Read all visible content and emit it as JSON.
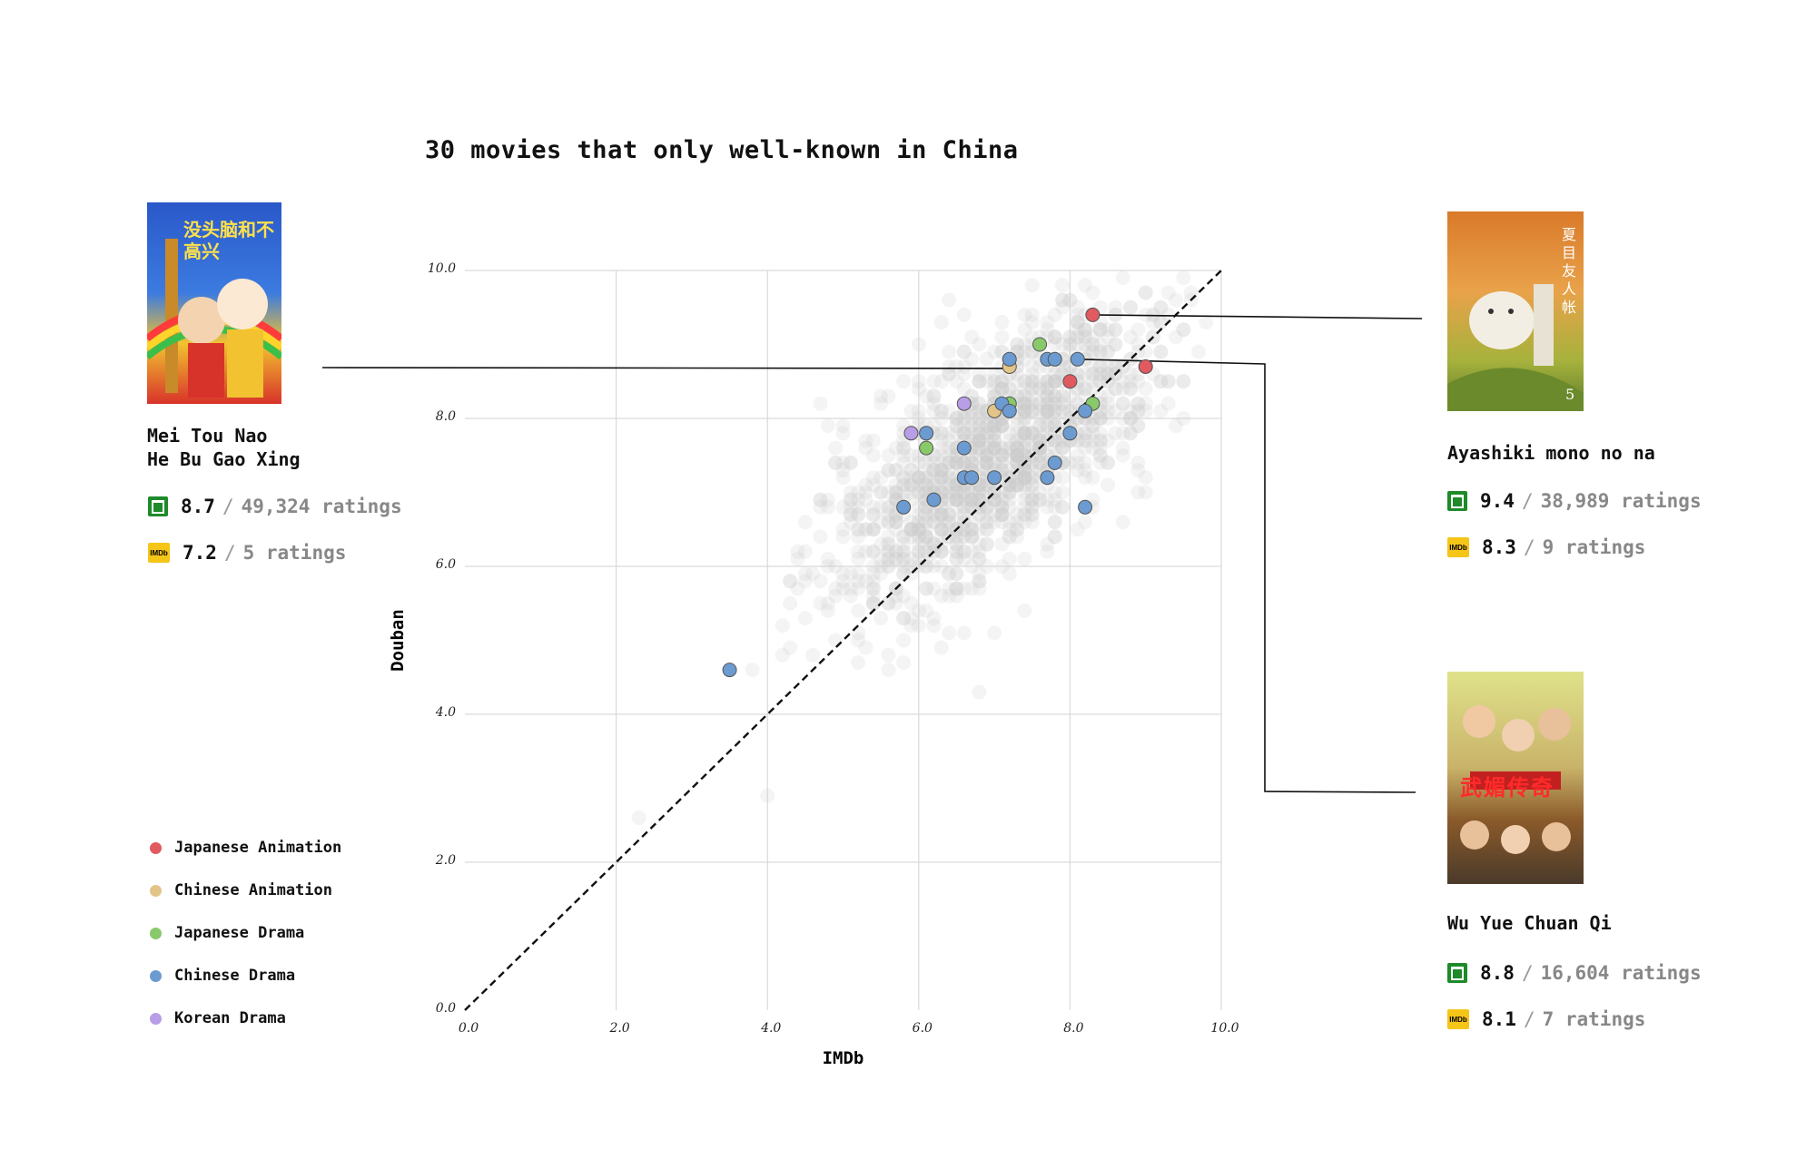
{
  "title": "30 movies that only well-known in China",
  "chart_data": {
    "type": "scatter",
    "title": "30 movies that only well-known in China",
    "xlabel": "IMDb",
    "ylabel": "Douban",
    "xlim": [
      0,
      10
    ],
    "ylim": [
      0,
      10
    ],
    "xticks": [
      "0.0",
      "2.0",
      "4.0",
      "6.0",
      "8.0",
      "10.0"
    ],
    "yticks": [
      "0.0",
      "2.0",
      "4.0",
      "6.0",
      "8.0",
      "10.0"
    ],
    "grid": true,
    "reference_line": "y = x (dashed)",
    "background_series": {
      "color": "#cccccc",
      "note": "all other movies (gray)"
    },
    "series": [
      {
        "name": "Japanese Animation",
        "color": "#e05a60",
        "points": [
          [
            8.3,
            9.4
          ],
          [
            9.0,
            8.7
          ],
          [
            8.0,
            8.5
          ]
        ]
      },
      {
        "name": "Chinese Animation",
        "color": "#e3c488",
        "points": [
          [
            7.2,
            8.7
          ],
          [
            7.0,
            8.1
          ]
        ]
      },
      {
        "name": "Japanese Drama",
        "color": "#88c96a",
        "points": [
          [
            7.6,
            9.0
          ],
          [
            7.2,
            8.2
          ],
          [
            8.3,
            8.2
          ],
          [
            6.1,
            7.6
          ]
        ]
      },
      {
        "name": "Chinese Drama",
        "color": "#6b9bd1",
        "points": [
          [
            7.2,
            8.8
          ],
          [
            7.7,
            8.8
          ],
          [
            7.8,
            8.8
          ],
          [
            8.1,
            8.8
          ],
          [
            7.1,
            8.2
          ],
          [
            7.2,
            8.1
          ],
          [
            8.2,
            8.1
          ],
          [
            8.0,
            7.8
          ],
          [
            6.1,
            7.8
          ],
          [
            6.6,
            7.6
          ],
          [
            7.8,
            7.4
          ],
          [
            6.6,
            7.2
          ],
          [
            6.7,
            7.2
          ],
          [
            7.0,
            7.2
          ],
          [
            7.7,
            7.2
          ],
          [
            6.2,
            6.9
          ],
          [
            5.8,
            6.8
          ],
          [
            8.2,
            6.8
          ],
          [
            3.5,
            4.6
          ]
        ]
      },
      {
        "name": "Korean Drama",
        "color": "#b79ee6",
        "points": [
          [
            5.9,
            7.8
          ],
          [
            6.6,
            8.2
          ]
        ]
      }
    ]
  },
  "legend": [
    {
      "label": "Japanese Animation",
      "color": "#e05a60"
    },
    {
      "label": "Chinese Animation",
      "color": "#e3c488"
    },
    {
      "label": "Japanese Drama",
      "color": "#88c96a"
    },
    {
      "label": "Chinese Drama",
      "color": "#6b9bd1"
    },
    {
      "label": "Korean Drama",
      "color": "#b79ee6"
    }
  ],
  "movies": {
    "left": {
      "name_line1": "Mei Tou Nao",
      "name_line2": "He Bu Gao Xing",
      "douban_score": "8.7",
      "douban_ratings": "49,324 ratings",
      "imdb_score": "7.2",
      "imdb_ratings": "5 ratings",
      "poster_text": "没头脑和不高兴"
    },
    "top_right": {
      "name": "Ayashiki mono no na",
      "douban_score": "9.4",
      "douban_ratings": "38,989 ratings",
      "imdb_score": "8.3",
      "imdb_ratings": "9 ratings",
      "poster_text": "夏目友人帐",
      "poster_number": "5"
    },
    "bottom_right": {
      "name": "Wu Yue Chuan Qi",
      "douban_score": "8.8",
      "douban_ratings": "16,604 ratings",
      "imdb_score": "8.1",
      "imdb_ratings": "7 ratings",
      "poster_text": "武媚传奇"
    }
  },
  "separator": "/",
  "imdb_logo_text": "IMDb"
}
